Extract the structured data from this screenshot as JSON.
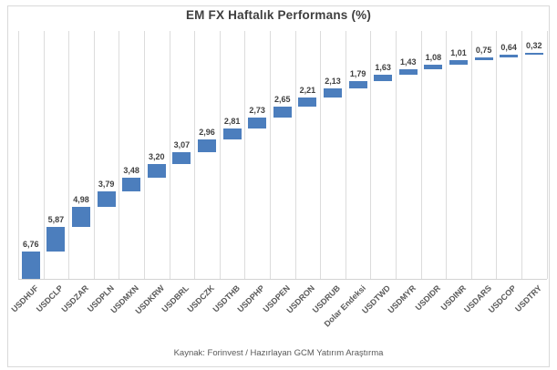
{
  "title": "EM FX Haftalık Performans (%)",
  "footer": "Kaynak: Forinvest / Hazırlayan GCM Yatırım Araştırma",
  "colors": {
    "bar": "#4c7ebd",
    "grid": "#dcdcdc",
    "axis_line": "#d3d3d3",
    "frame_border": "#d9d9d9",
    "title_text": "#3f3f3f",
    "value_label_text": "#404040",
    "category_label_text": "#595959",
    "footer_text": "#595959"
  },
  "chart_data": {
    "type": "bar",
    "subtype": "cascading-waterfall-descending",
    "title": "EM FX Haftalık Performans (%)",
    "categories": [
      "USDHUF",
      "USDCLP",
      "USDZAR",
      "USDPLN",
      "USDMXN",
      "USDKRW",
      "USDBRL",
      "USDCZK",
      "USDTHB",
      "USDPHP",
      "USDPEN",
      "USDRON",
      "USDRUB",
      "Dolar Endeksi",
      "USDTWD",
      "USDMYR",
      "USDIDR",
      "USDINR",
      "USDARS",
      "USDCOP",
      "USDTRY"
    ],
    "values": [
      6.76,
      5.87,
      4.98,
      3.79,
      3.48,
      3.2,
      3.07,
      2.96,
      2.81,
      2.73,
      2.65,
      2.21,
      2.13,
      1.79,
      1.63,
      1.43,
      1.08,
      1.01,
      0.75,
      0.64,
      0.32
    ],
    "value_labels": [
      "6,76",
      "5,87",
      "4,98",
      "3,79",
      "3,48",
      "3,20",
      "3,07",
      "2,96",
      "2,81",
      "2,73",
      "2,65",
      "2,21",
      "2,13",
      "1,79",
      "1,63",
      "1,43",
      "1,08",
      "1,01",
      "0,75",
      "0,64",
      "0,32"
    ],
    "xlabel": "",
    "ylabel": "",
    "value_axis_visible": false,
    "grid": "vertical-only",
    "legend": "none",
    "bar_labels_position": "outside-end-above",
    "category_label_rotation_deg": 45
  }
}
